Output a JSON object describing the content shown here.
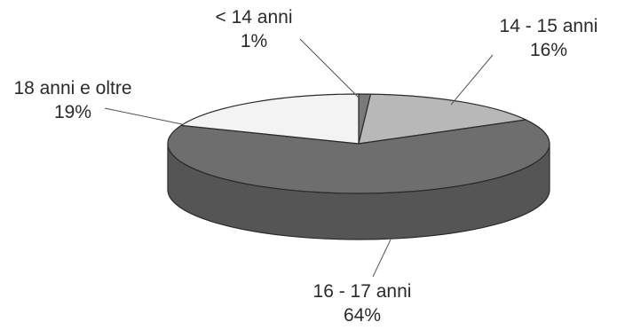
{
  "chart_data": {
    "type": "pie",
    "style": "3d",
    "slices": [
      {
        "label": "< 14 anni",
        "percent_label": "1%",
        "value": 1,
        "color": "#7a7a7a"
      },
      {
        "label": "14 - 15 anni",
        "percent_label": "16%",
        "value": 16,
        "color": "#b8b8b8"
      },
      {
        "label": "16 - 17 anni",
        "percent_label": "64%",
        "value": 64,
        "color": "#6e6e6e"
      },
      {
        "label": "18 anni e oltre",
        "percent_label": "19%",
        "value": 19,
        "color": "#f3f3f3"
      }
    ],
    "side_color": "#555555",
    "legend": "none",
    "title": ""
  }
}
